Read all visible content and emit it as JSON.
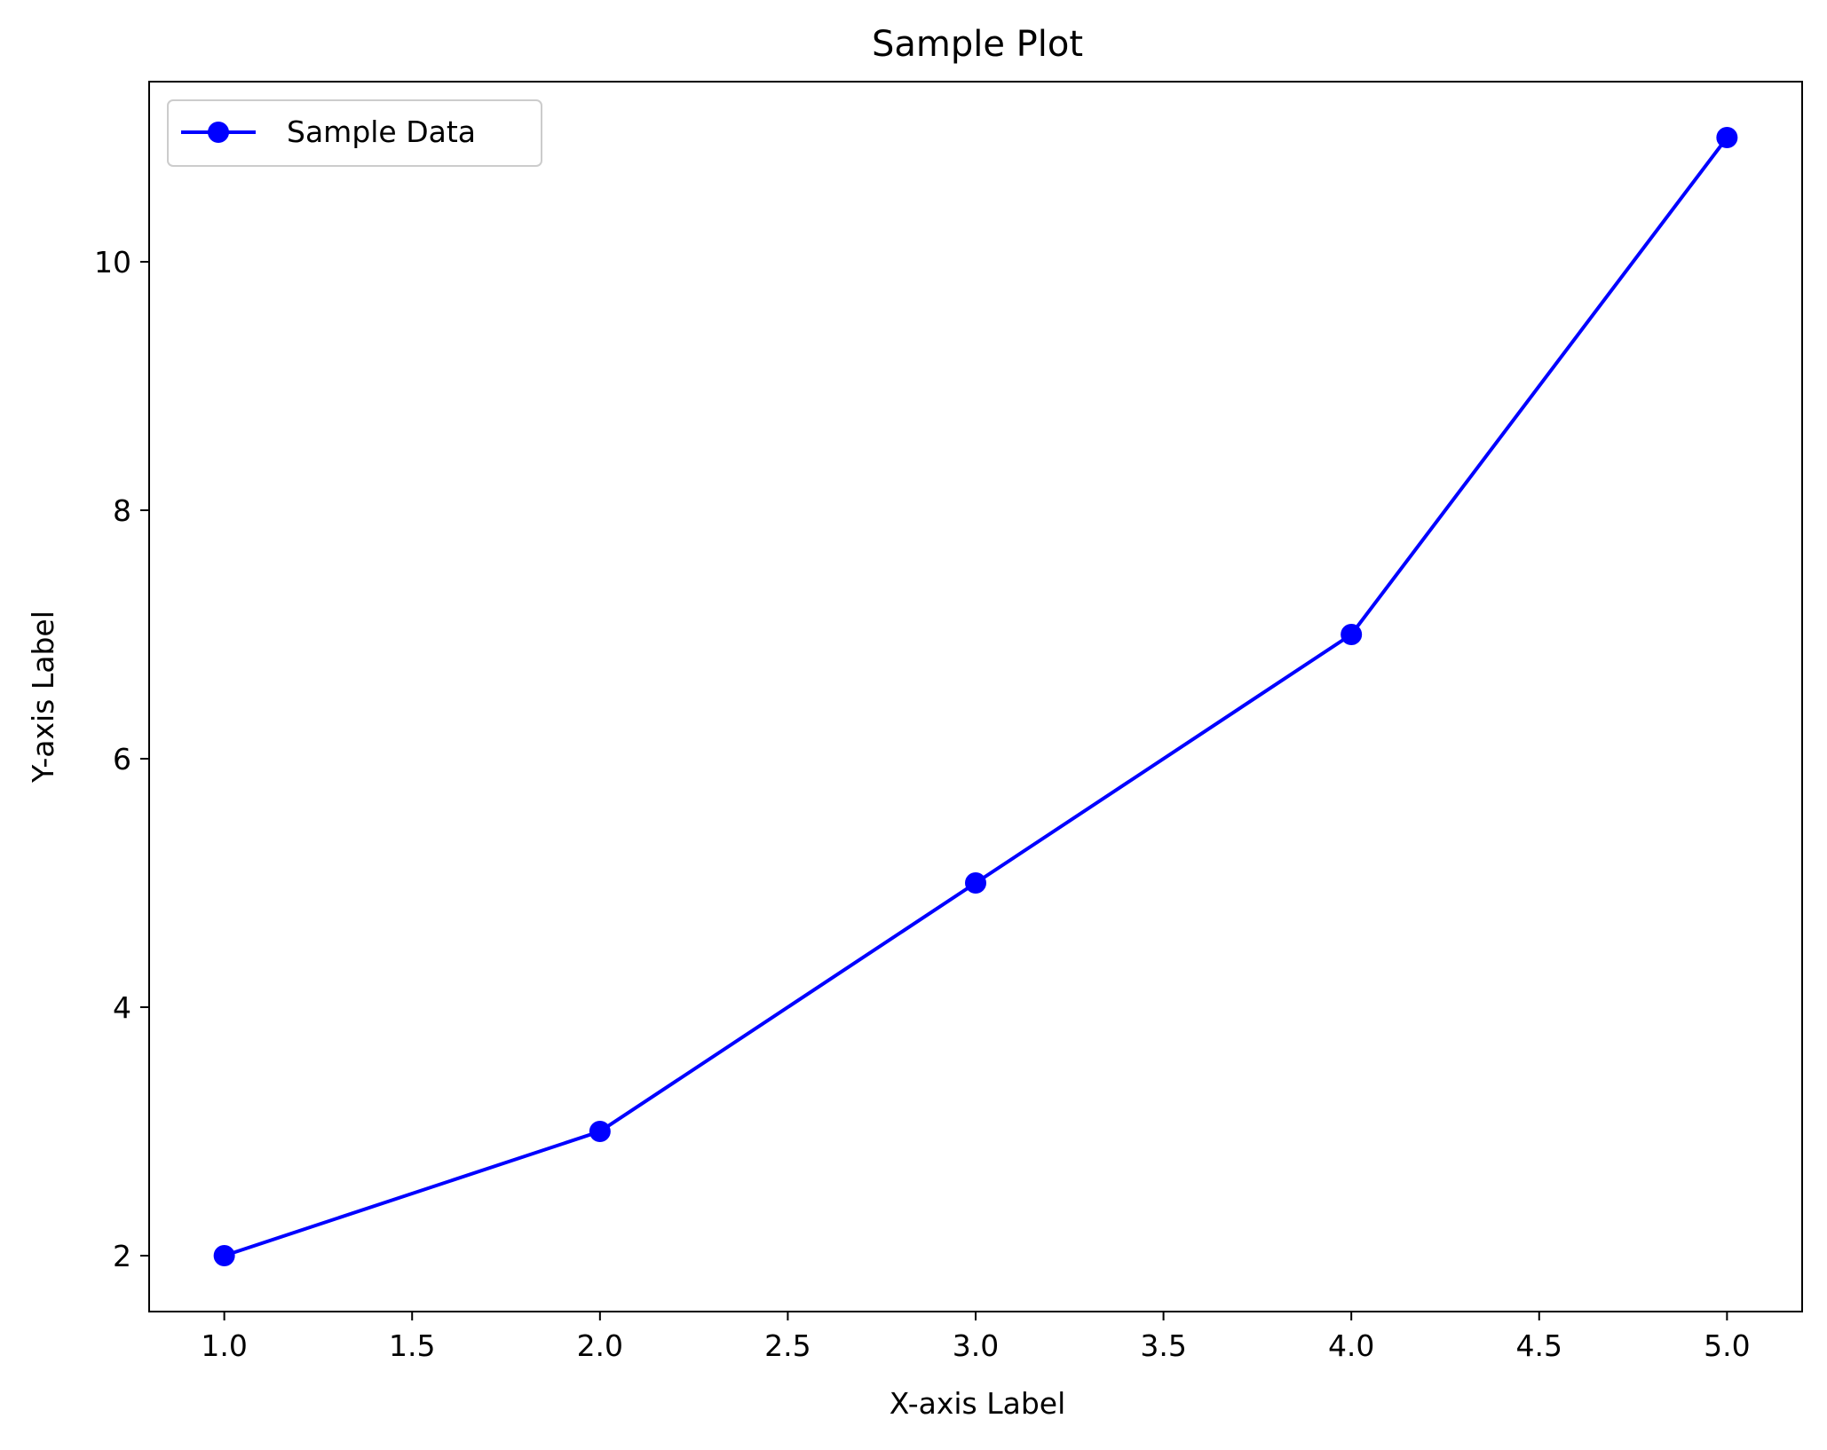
{
  "chart_data": {
    "type": "line",
    "title": "Sample Plot",
    "xlabel": "X-axis Label",
    "ylabel": "Y-axis Label",
    "xlim": [
      0.8,
      5.2
    ],
    "ylim": [
      1.55,
      11.45
    ],
    "x_ticks": [
      1.0,
      1.5,
      2.0,
      2.5,
      3.0,
      3.5,
      4.0,
      4.5,
      5.0
    ],
    "x_tick_labels": [
      "1.0",
      "1.5",
      "2.0",
      "2.5",
      "3.0",
      "3.5",
      "4.0",
      "4.5",
      "5.0"
    ],
    "y_ticks": [
      2,
      4,
      6,
      8,
      10
    ],
    "y_tick_labels": [
      "2",
      "4",
      "6",
      "8",
      "10"
    ],
    "grid": false,
    "legend": {
      "placement": "top-left",
      "entries": [
        "Sample Data"
      ]
    },
    "series": [
      {
        "name": "Sample Data",
        "color": "#0000ff",
        "marker": "circle",
        "x": [
          1,
          2,
          3,
          4,
          5
        ],
        "y": [
          2,
          3,
          5,
          7,
          11
        ]
      }
    ]
  }
}
